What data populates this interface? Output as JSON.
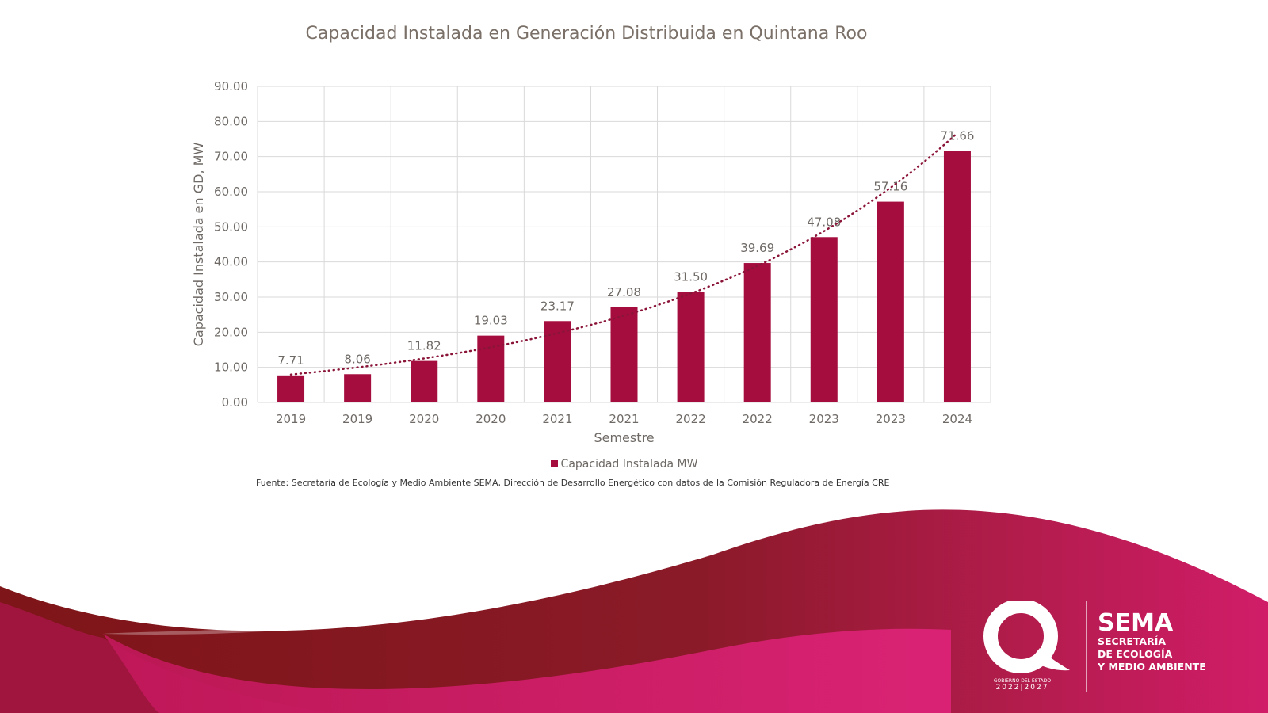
{
  "chart_data": {
    "type": "bar",
    "title": "Capacidad Instalada en Generación Distribuida en Quintana Roo",
    "xlabel": "Semestre",
    "ylabel": "Capacidad Instalada en GD, MW",
    "categories": [
      "2019",
      "2019",
      "2020",
      "2020",
      "2021",
      "2021",
      "2022",
      "2022",
      "2023",
      "2023",
      "2024"
    ],
    "series": [
      {
        "name": "Capacidad Instalada MW",
        "values": [
          7.71,
          8.06,
          11.82,
          19.03,
          23.17,
          27.08,
          31.5,
          39.69,
          47.08,
          57.16,
          71.66
        ],
        "labels": [
          "7.71",
          "8.06",
          "11.82",
          "19.03",
          "23.17",
          "27.08",
          "31.50",
          "39.69",
          "47.08",
          "57.16",
          "71.66"
        ]
      }
    ],
    "ylim": [
      0,
      90
    ],
    "yticks": [
      "0.00",
      "10.00",
      "20.00",
      "30.00",
      "40.00",
      "50.00",
      "60.00",
      "70.00",
      "80.00",
      "90.00"
    ],
    "grid": true,
    "trendline": "exponential, dotted",
    "legend_position": "bottom",
    "colors": {
      "bar": "#a50d3e",
      "trend": "#8a1538"
    }
  },
  "source": "Fuente: Secretaría de Ecología y Medio Ambiente SEMA, Dirección de Desarrollo Energético con datos de la Comisión Reguladora de Energía CRE",
  "logo": {
    "name": "SEMA",
    "line1": "SECRETARÍA",
    "line2": "DE ECOLOGÍA",
    "line3": "Y MEDIO AMBIENTE",
    "gov": "GOBIERNO DEL ESTADO",
    "years": "2022|2027"
  }
}
